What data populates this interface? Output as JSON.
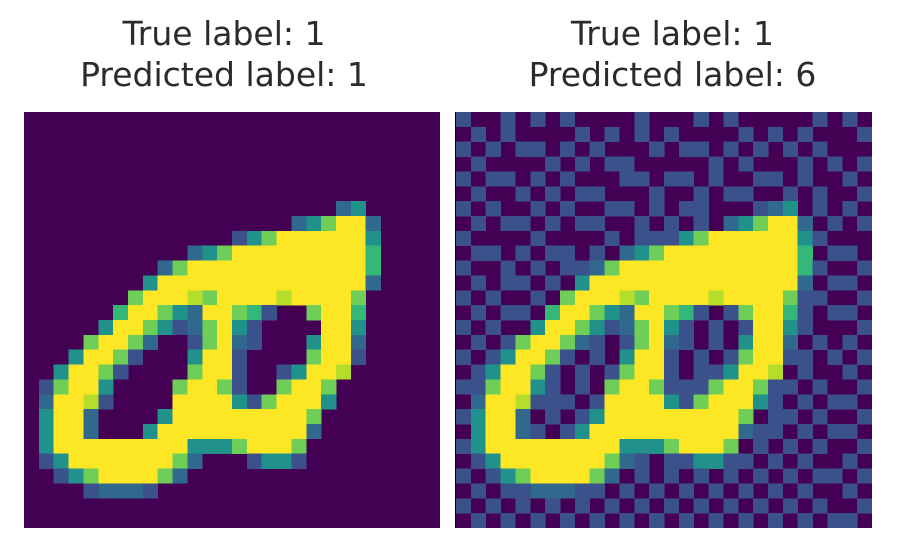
{
  "colors": {
    "background": "#440154",
    "noise": "#3b518b",
    "faint": "#31688e",
    "mid": "#21918c",
    "bright_teal": "#35b779",
    "green": "#6ece58",
    "yellow_green": "#b5de2b",
    "yellow": "#fde725"
  },
  "chart_data": [
    {
      "type": "heatmap",
      "title": "True label: 1",
      "subtitle": "Predicted label: 1",
      "grid_size": [
        28,
        28
      ],
      "colormap": "viridis",
      "description_rows": [
        "0000000000000000000000000000",
        "0000000000000000000000000000",
        "0000000000000000000000000000",
        "0000000000000000000000000000",
        "0000000000000000000000000000",
        "0000000000000000000000000000",
        "0000000000000000000002300000",
        "0000000000000000002357720000",
        "0000000000000013577777730000",
        "0000000000023577777777740000",
        "0000000002577777777777740000",
        "0000000037777777777777720000",
        "0000000577765777767777500000",
        "0000004775327754100577400000",
        "0000037753125731000077300000",
        "0000577520015721000377200000",
        "0003775100037710000577100000",
        "0037751000057710013776000000",
        "0157730000577510057750000000",
        "0277610000777731577730000000",
        "0377200003777777777500000000",
        "0377200037777777777200000000",
        "0377777777733357775000000000",
        "0137777777520001331000000000",
        "0013577775200000000000000000",
        "0000122210000000000000000000",
        "0000000000000000000000000000",
        "0000000000000000000000000000"
      ]
    },
    {
      "type": "heatmap",
      "title": "True label: 1",
      "subtitle": "Predicted label: 6",
      "grid_size": [
        28,
        28
      ],
      "colormap": "viridis",
      "description_rows": [
        "1001010100001000101000001010",
        "0101000010101010000101010001",
        "1010110101000101101010101000",
        "0100001010110000010100010101",
        "1011010100011011010011010010",
        "0100101011000100101100101001",
        "1010010100110101100012301010",
        "0101101011001010102357720101",
        "1000010000101113577777731000",
        "0110101101023577777777740110",
        "1001010112577777777777741001",
        "0101101037777777777777720110",
        "1010010577765777767777511001",
        "0101104775327754101577410110",
        "1010037753125731010177310001",
        "0101577521015721010377201010",
        "1013775101037710101577110101",
        "0137751010157710113776010010",
        "1157731010577511157751101001",
        "0277611101777731577731010110",
        "1377201013777777777501101001",
        "0377210137777777777211010110",
        "1377777777733357775010101001",
        "0137777777521011331101010010",
        "1013577775201010101010101101",
        "0101122211010101010101010010",
        "1010101010101010101010101001",
        "0101010101010101010101010110"
      ]
    }
  ],
  "figure": {
    "left": {
      "title": "True label: 1",
      "subtitle": "Predicted label: 1"
    },
    "right": {
      "title": "True label: 1",
      "subtitle": "Predicted label: 6"
    }
  }
}
